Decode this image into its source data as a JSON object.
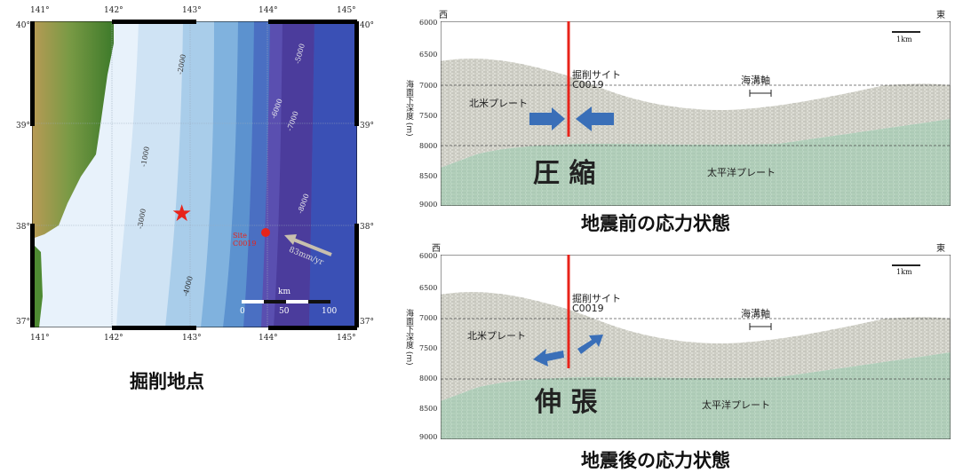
{
  "map": {
    "caption": "掘削地点",
    "lon_ticks": [
      "141°",
      "142°",
      "143°",
      "144°",
      "145°"
    ],
    "lat_ticks": [
      "40°",
      "39°",
      "38°",
      "37°"
    ],
    "depth_contours": [
      "-1000",
      "-2000",
      "-3000",
      "-4000",
      "-5000",
      "-6000",
      "-7000",
      "-8000"
    ],
    "site_label": "Site C0019",
    "rate_label": "83mm/yr",
    "scale_unit": "km",
    "scale_ticks": [
      "0",
      "50",
      "100"
    ],
    "colors": {
      "land_low": "#3d7a2a",
      "land_high": "#b89a55",
      "shallow": "#e6f1fa",
      "deep": "#3a3f9a",
      "star": "#e8231a",
      "site": "#e8231a"
    }
  },
  "sections": [
    {
      "caption": "地震前の応力状態",
      "dir_west": "西",
      "dir_east": "東",
      "depth_axis_label": "海面下深度 (m)",
      "depth_ticks": [
        "6000",
        "6500",
        "7000",
        "7500",
        "8000",
        "8500",
        "9000"
      ],
      "drill_label_line1": "掘削サイト",
      "drill_label_line2": "C0019",
      "trench_label": "海溝軸",
      "plate_na": "北米プレート",
      "plate_pa": "太平洋プレート",
      "stress_label": "圧 縮",
      "scale_label": "1km",
      "arrows": "compression"
    },
    {
      "caption": "地震後の応力状態",
      "dir_west": "西",
      "dir_east": "東",
      "depth_axis_label": "海面下深度 (m)",
      "depth_ticks": [
        "6000",
        "6500",
        "7000",
        "7500",
        "8000",
        "8500",
        "9000"
      ],
      "drill_label_line1": "掘削サイト",
      "drill_label_line2": "C0019",
      "trench_label": "海溝軸",
      "plate_na": "北米プレート",
      "plate_pa": "太平洋プレート",
      "stress_label": "伸 張",
      "scale_label": "1km",
      "arrows": "extension"
    }
  ]
}
